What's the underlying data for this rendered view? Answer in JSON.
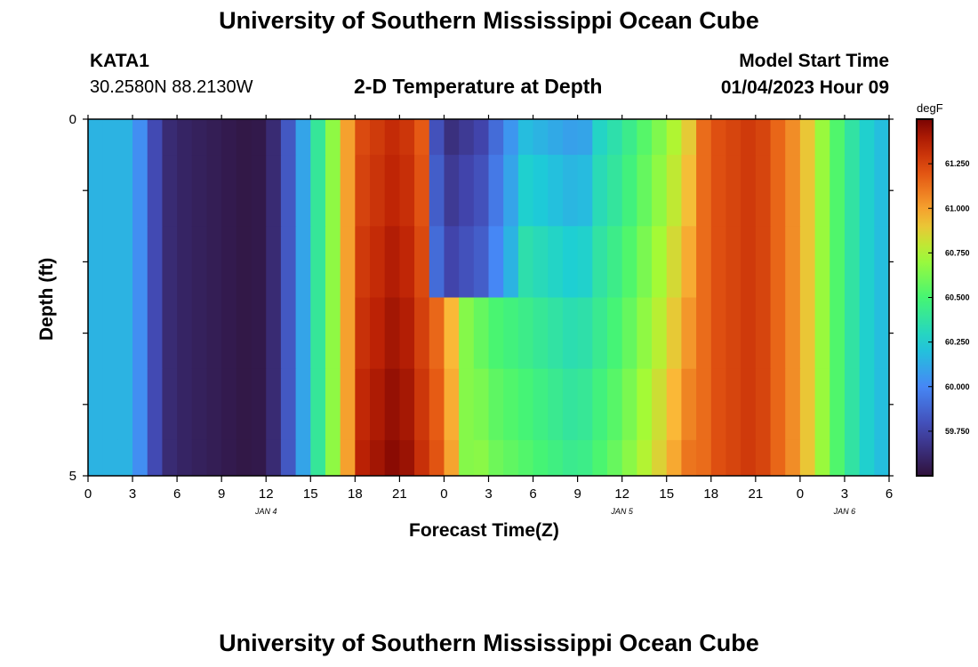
{
  "page": {
    "title": "University of Southern Mississippi Ocean Cube",
    "footer_title": "University of Southern Mississippi Ocean Cube",
    "station": "KATA1",
    "coordinates": "30.2580N  88.2130W",
    "chart_title": "2-D Temperature at Depth",
    "model_start_label": "Model Start Time",
    "model_start_value": "01/04/2023 Hour 09"
  },
  "chart_data": {
    "type": "heatmap",
    "title": "2-D Temperature at Depth",
    "xlabel": "Forecast Time(Z)",
    "ylabel": "Depth (ft)",
    "colorbar_unit": "degF",
    "y_ticks": [
      "0",
      "5"
    ],
    "y_range": [
      0,
      5
    ],
    "x_ticks": [
      "0",
      "3",
      "6",
      "9",
      "12",
      "15",
      "18",
      "21",
      "0",
      "3",
      "6",
      "9",
      "12",
      "15",
      "18",
      "21",
      "0",
      "3",
      "6"
    ],
    "date_labels": [
      {
        "label": "JAN 4",
        "tick_index": 4
      },
      {
        "label": "JAN 5",
        "tick_index": 12
      },
      {
        "label": "JAN 6",
        "tick_index": 17
      }
    ],
    "color_ticks": [
      59.75,
      60.0,
      60.25,
      60.5,
      60.75,
      61.0,
      61.25
    ],
    "color_ticks_labels": [
      "59.750",
      "60.000",
      "60.250",
      "60.500",
      "60.750",
      "61.000",
      "61.250"
    ],
    "color_range": [
      59.5,
      61.5
    ],
    "depth_rows": 5,
    "hours": 54,
    "temperature_profile": [
      [
        0,
        60.15
      ],
      [
        3,
        60.15
      ],
      [
        4,
        59.9
      ],
      [
        5,
        59.65
      ],
      [
        6,
        59.6
      ],
      [
        9,
        59.55
      ],
      [
        11,
        59.52
      ],
      [
        12,
        59.55
      ],
      [
        13,
        59.7
      ],
      [
        14,
        59.95
      ],
      [
        15,
        60.25
      ],
      [
        16,
        60.55
      ],
      [
        17,
        60.8
      ],
      [
        18,
        61.2
      ],
      [
        21,
        61.35
      ],
      [
        24,
        61.0
      ],
      [
        25,
        60.7
      ],
      [
        27,
        60.5
      ],
      [
        30,
        60.4
      ],
      [
        33,
        60.3
      ],
      [
        36,
        60.5
      ],
      [
        39,
        60.8
      ],
      [
        42,
        61.2
      ],
      [
        45,
        61.3
      ],
      [
        48,
        61.0
      ],
      [
        50,
        60.6
      ],
      [
        52,
        60.3
      ],
      [
        54,
        60.15
      ]
    ],
    "surface_anomaly": {
      "start_hour": 23,
      "end_hour": 28,
      "values": [
        59.8,
        59.65,
        59.7,
        59.75,
        59.9,
        60.05
      ]
    }
  }
}
